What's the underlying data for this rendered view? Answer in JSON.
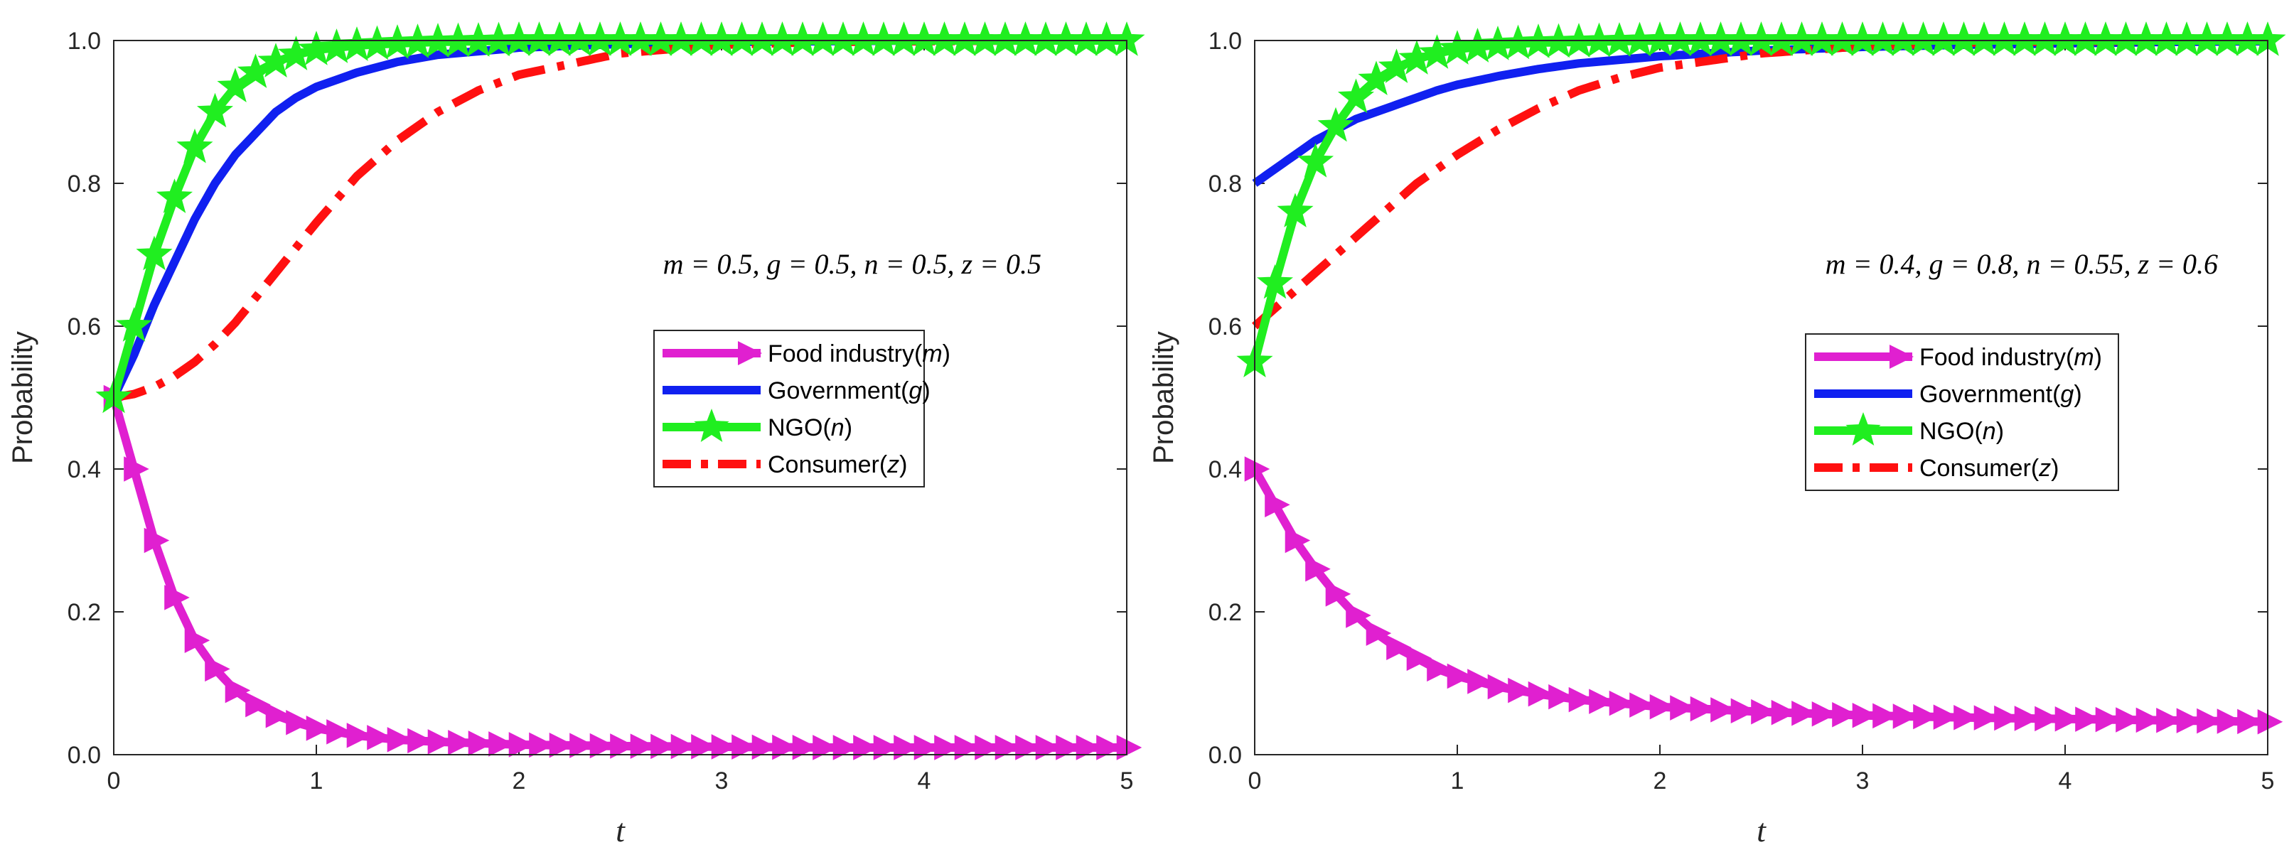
{
  "chart_data": [
    {
      "type": "line",
      "title": "",
      "xlabel": "t",
      "ylabel": "Probability",
      "xlim": [
        0,
        5
      ],
      "ylim": [
        0,
        1
      ],
      "xticks": [
        "0",
        "1",
        "2",
        "3",
        "4",
        "5"
      ],
      "yticks": [
        "0.0",
        "0.2",
        "0.4",
        "0.6",
        "0.8",
        "1.0"
      ],
      "annotation": "m = 0.5, g = 0.5, n = 0.5, z = 0.5",
      "legend_position": "center-right",
      "x": [
        0,
        0.1,
        0.2,
        0.3,
        0.4,
        0.5,
        0.6,
        0.7,
        0.8,
        0.9,
        1.0,
        1.2,
        1.4,
        1.6,
        1.8,
        2.0,
        2.5,
        3.0,
        3.5,
        4.0,
        4.5,
        5.0
      ],
      "series": [
        {
          "name": "Food industry",
          "param": "m",
          "color": "#e020d0",
          "style": "solid",
          "marker": "triangle-right",
          "values": [
            0.5,
            0.4,
            0.3,
            0.22,
            0.16,
            0.12,
            0.09,
            0.07,
            0.055,
            0.045,
            0.037,
            0.027,
            0.021,
            0.018,
            0.016,
            0.014,
            0.012,
            0.011,
            0.01,
            0.01,
            0.01,
            0.01
          ]
        },
        {
          "name": "Government",
          "param": "g",
          "color": "#1020f0",
          "style": "solid",
          "marker": "none",
          "values": [
            0.5,
            0.56,
            0.63,
            0.69,
            0.75,
            0.8,
            0.84,
            0.87,
            0.9,
            0.92,
            0.935,
            0.955,
            0.97,
            0.98,
            0.985,
            0.99,
            0.995,
            0.998,
            0.999,
            1.0,
            1.0,
            1.0
          ]
        },
        {
          "name": "NGO",
          "param": "n",
          "color": "#20ee20",
          "style": "solid",
          "marker": "star",
          "values": [
            0.5,
            0.6,
            0.7,
            0.78,
            0.85,
            0.9,
            0.935,
            0.955,
            0.97,
            0.98,
            0.987,
            0.993,
            0.996,
            0.998,
            0.999,
            1.0,
            1.0,
            1.0,
            1.0,
            1.0,
            1.0,
            1.0
          ]
        },
        {
          "name": "Consumer",
          "param": "z",
          "color": "#ff1010",
          "style": "dashdot",
          "marker": "none",
          "values": [
            0.5,
            0.505,
            0.515,
            0.53,
            0.55,
            0.575,
            0.605,
            0.64,
            0.675,
            0.71,
            0.745,
            0.81,
            0.86,
            0.9,
            0.93,
            0.952,
            0.982,
            0.994,
            0.998,
            0.999,
            1.0,
            1.0
          ]
        }
      ]
    },
    {
      "type": "line",
      "title": "",
      "xlabel": "t",
      "ylabel": "Probability",
      "xlim": [
        0,
        5
      ],
      "ylim": [
        0,
        1
      ],
      "xticks": [
        "0",
        "1",
        "2",
        "3",
        "4",
        "5"
      ],
      "yticks": [
        "0.0",
        "0.2",
        "0.4",
        "0.6",
        "0.8",
        "1.0"
      ],
      "annotation": "m = 0.4, g = 0.8, n = 0.55, z = 0.6",
      "legend_position": "center-right",
      "x": [
        0,
        0.1,
        0.2,
        0.3,
        0.4,
        0.5,
        0.6,
        0.7,
        0.8,
        0.9,
        1.0,
        1.2,
        1.4,
        1.6,
        1.8,
        2.0,
        2.5,
        3.0,
        3.5,
        4.0,
        4.5,
        5.0
      ],
      "series": [
        {
          "name": "Food industry",
          "param": "m",
          "color": "#e020d0",
          "style": "solid",
          "marker": "triangle-right",
          "values": [
            0.4,
            0.35,
            0.3,
            0.26,
            0.225,
            0.195,
            0.17,
            0.15,
            0.135,
            0.12,
            0.11,
            0.095,
            0.085,
            0.077,
            0.072,
            0.067,
            0.06,
            0.055,
            0.052,
            0.05,
            0.048,
            0.046
          ]
        },
        {
          "name": "Government",
          "param": "g",
          "color": "#1020f0",
          "style": "solid",
          "marker": "none",
          "values": [
            0.8,
            0.82,
            0.84,
            0.86,
            0.875,
            0.89,
            0.9,
            0.91,
            0.92,
            0.93,
            0.938,
            0.95,
            0.96,
            0.968,
            0.973,
            0.978,
            0.986,
            0.991,
            0.994,
            0.996,
            0.998,
            0.999
          ]
        },
        {
          "name": "NGO",
          "param": "n",
          "color": "#20ee20",
          "style": "solid",
          "marker": "star",
          "values": [
            0.55,
            0.66,
            0.76,
            0.83,
            0.88,
            0.92,
            0.945,
            0.962,
            0.974,
            0.982,
            0.988,
            0.994,
            0.997,
            0.998,
            0.999,
            1.0,
            1.0,
            1.0,
            1.0,
            1.0,
            1.0,
            1.0
          ]
        },
        {
          "name": "Consumer",
          "param": "z",
          "color": "#ff1010",
          "style": "dashdot",
          "marker": "none",
          "values": [
            0.6,
            0.625,
            0.65,
            0.675,
            0.7,
            0.725,
            0.75,
            0.775,
            0.8,
            0.82,
            0.84,
            0.875,
            0.905,
            0.93,
            0.948,
            0.962,
            0.982,
            0.992,
            0.997,
            0.999,
            1.0,
            1.0
          ]
        }
      ]
    }
  ]
}
